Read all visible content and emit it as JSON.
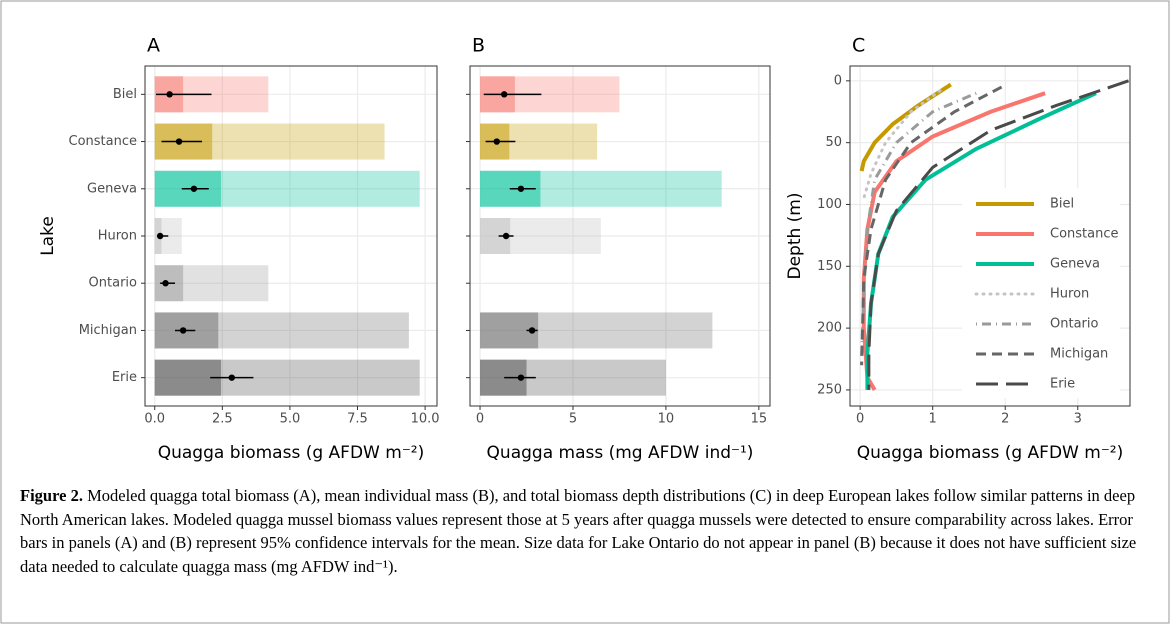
{
  "chart_data": [
    {
      "type": "dot_errorbar",
      "title": "A",
      "y_label": "Lake",
      "x_label": "Quagga biomass (g AFDW m⁻²)",
      "categories": [
        "Biel",
        "Constance",
        "Geneva",
        "Huron",
        "Ontario",
        "Michigan",
        "Erie"
      ],
      "colors": [
        "#f8766d",
        "#c49a00",
        "#00c19a",
        "#bdbdbd",
        "#9a9a9a",
        "#6e6e6e",
        "#4d4d4d"
      ],
      "means": [
        0.55,
        0.9,
        1.45,
        0.2,
        0.4,
        1.05,
        2.85
      ],
      "ci_low": [
        0.05,
        0.25,
        1.0,
        0.1,
        0.2,
        0.75,
        2.05
      ],
      "ci_high": [
        2.1,
        1.75,
        2.0,
        0.5,
        0.75,
        1.5,
        3.65
      ],
      "range_max": [
        4.2,
        8.5,
        9.8,
        1.0,
        4.2,
        9.4,
        9.8
      ],
      "xlim": [
        -0.36,
        10.44
      ],
      "xticks": [
        {
          "value": 0,
          "label": "0.0"
        },
        2.5,
        {
          "value": 5,
          "label": "5.0"
        },
        7.5,
        {
          "value": 10,
          "label": "10.0"
        }
      ],
      "grid": true
    },
    {
      "type": "dot_errorbar",
      "title": "B",
      "x_label": "Quagga mass (mg AFDW ind⁻¹)",
      "colors": [
        "#f8766d",
        "#c49a00",
        "#00c19a",
        "#bdbdbd",
        "#9a9a9a",
        "#6e6e6e",
        "#4d4d4d"
      ],
      "means": [
        1.3,
        0.9,
        2.2,
        1.4,
        null,
        2.8,
        2.2
      ],
      "ci_low": [
        0.2,
        0.3,
        1.6,
        1.0,
        null,
        2.5,
        1.3
      ],
      "ci_high": [
        3.3,
        1.9,
        3.0,
        1.8,
        null,
        3.1,
        3.0
      ],
      "range_max": [
        7.5,
        6.3,
        13.0,
        6.5,
        null,
        12.5,
        10.0
      ],
      "xlim": [
        -0.54,
        15.6
      ],
      "xticks": [
        0,
        5,
        10,
        15
      ],
      "grid": true
    },
    {
      "type": "line",
      "title": "C",
      "y_label": "Depth (m)",
      "x_label": "Quagga biomass (g AFDW m⁻²)",
      "xlim": [
        -0.14,
        3.72
      ],
      "xticks": [
        0,
        1,
        2,
        3
      ],
      "ylim": [
        263,
        -12
      ],
      "yticks": [
        0,
        50,
        100,
        150,
        200,
        250
      ],
      "grid": true,
      "legend": "right",
      "series": [
        {
          "name": "Biel",
          "color": "#c49a00",
          "linetype": "solid",
          "x": [
            1.25,
            0.8,
            0.45,
            0.2,
            0.05,
            0.02
          ],
          "values": [
            3,
            20,
            35,
            50,
            65,
            73
          ]
        },
        {
          "name": "Constance",
          "color": "#f8766d",
          "linetype": "solid",
          "x": [
            2.55,
            1.8,
            1.0,
            0.5,
            0.2,
            0.1,
            0.05,
            0.05,
            0.1,
            0.2
          ],
          "values": [
            10,
            25,
            45,
            65,
            90,
            120,
            160,
            200,
            240,
            250
          ]
        },
        {
          "name": "Geneva",
          "color": "#00bf96",
          "linetype": "solid",
          "x": [
            3.25,
            2.5,
            1.6,
            0.9,
            0.45,
            0.25,
            0.15,
            0.1,
            0.1
          ],
          "values": [
            10,
            30,
            55,
            80,
            110,
            140,
            180,
            220,
            250
          ]
        },
        {
          "name": "Huron",
          "color": "#c4c4c4",
          "linetype": "dotted",
          "x": [
            1.1,
            0.7,
            0.35,
            0.15,
            0.05
          ],
          "values": [
            8,
            25,
            50,
            75,
            95
          ]
        },
        {
          "name": "Ontario",
          "color": "#9a9a9a",
          "linetype": "dotdash",
          "x": [
            1.6,
            1.0,
            0.5,
            0.2,
            0.1,
            0.05,
            0.02
          ],
          "values": [
            10,
            25,
            50,
            80,
            120,
            170,
            225
          ]
        },
        {
          "name": "Michigan",
          "color": "#666666",
          "linetype": "dashed",
          "x": [
            1.95,
            1.3,
            0.7,
            0.35,
            0.15,
            0.05,
            0.02
          ],
          "values": [
            5,
            25,
            50,
            80,
            120,
            160,
            230
          ]
        },
        {
          "name": "Erie",
          "color": "#4a4a4a",
          "linetype": "longdash",
          "x": [
            3.7,
            2.7,
            1.8,
            1.0,
            0.5,
            0.25,
            0.15,
            0.12,
            0.12
          ],
          "values": [
            0,
            20,
            40,
            70,
            105,
            140,
            180,
            220,
            250
          ]
        }
      ]
    }
  ],
  "caption": {
    "label": "Figure 2.",
    "text": "Modeled quagga total biomass (A), mean individual mass (B), and total biomass depth distributions (C) in deep European lakes follow similar patterns in deep North American lakes. Modeled quagga mussel biomass values represent those at 5 years after quagga mussels were detected to ensure comparability across lakes. Error bars in panels (A) and (B) represent 95% confidence intervals for the mean. Size data for Lake Ontario do not appear in panel (B) because it does not have sufficient size data needed to calculate quagga mass (mg AFDW ind⁻¹)."
  }
}
